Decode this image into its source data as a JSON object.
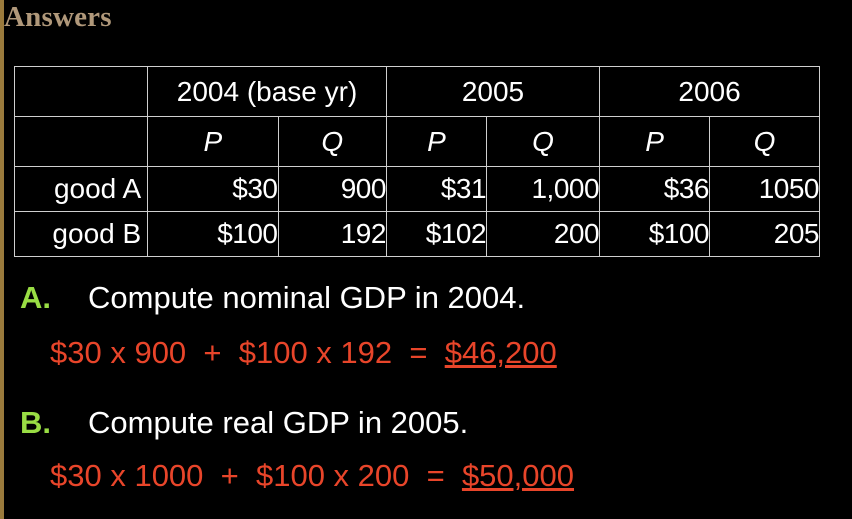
{
  "slide": {
    "title": "Answers"
  },
  "table": {
    "year_headers": [
      "2004 (base yr)",
      "2005",
      "2006"
    ],
    "sub_headers": [
      "P",
      "Q",
      "P",
      "Q",
      "P",
      "Q"
    ],
    "rows": [
      {
        "label": "good A",
        "values": [
          "$30",
          "900",
          "$31",
          "1,000",
          "$36",
          "1050"
        ]
      },
      {
        "label": "good B",
        "values": [
          "$100",
          "192",
          "$102",
          "200",
          "$100",
          "205"
        ]
      }
    ]
  },
  "questions": [
    {
      "letter": "A.",
      "text": "Compute nominal GDP in 2004.",
      "answer_expr": "$30 x 900  +  $100 x 192  =  ",
      "answer_result": "$46,200"
    },
    {
      "letter": "B.",
      "text": "Compute real GDP in 2005.",
      "answer_expr": "$30 x 1000  +  $100 x 200  =  ",
      "answer_result": "$50,000"
    }
  ],
  "colors": {
    "background": "#000000",
    "title": "#b0987a",
    "question_letter": "#99dd44",
    "answer": "#e8452a",
    "text": "#ffffff"
  }
}
